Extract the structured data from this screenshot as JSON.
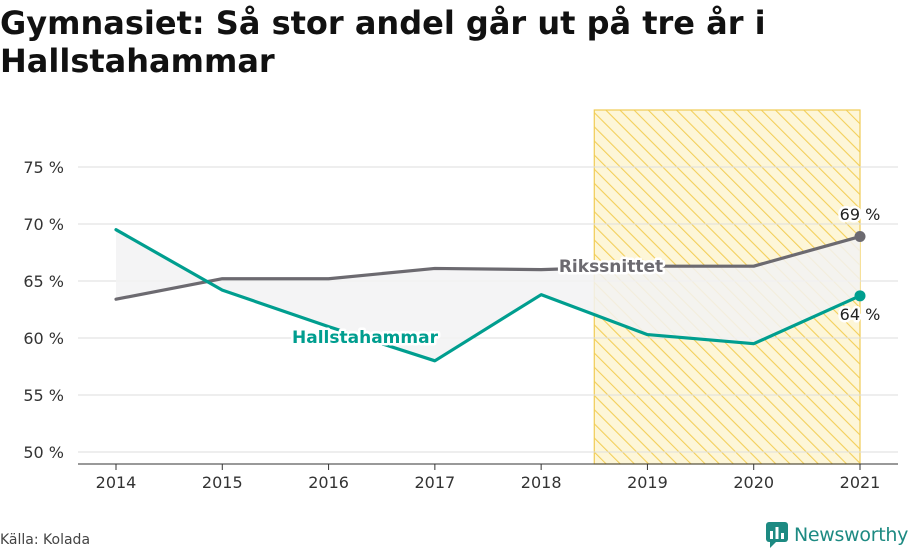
{
  "title": "Gymnasiet: Så stor andel går ut på tre år i Hallstahammar",
  "source": "Källa: Kolada",
  "logo": {
    "text": "Newsworthy",
    "icon": "newsworthy-logo-icon"
  },
  "colors": {
    "hallstahammar": "#009e8f",
    "riket": "#6c6a70",
    "highlight": "#f6d56b",
    "grid": "#dddddd"
  },
  "chart_data": {
    "type": "line",
    "title": "Gymnasiet: Så stor andel går ut på tre år i Hallstahammar",
    "x": [
      2014,
      2015,
      2016,
      2017,
      2018,
      2019,
      2020,
      2021
    ],
    "ylim": [
      50,
      80
    ],
    "yticks": [
      50,
      55,
      60,
      65,
      70,
      75
    ],
    "ytick_labels": [
      "50 %",
      "55 %",
      "60 %",
      "65 %",
      "70 %",
      "75 %"
    ],
    "grid": true,
    "highlight_range": [
      2018.5,
      2021
    ],
    "series": [
      {
        "name": "Hallstahammar",
        "values": [
          69.5,
          64.2,
          61.0,
          58.0,
          63.8,
          60.3,
          59.5,
          63.7
        ],
        "end_label": "64 %"
      },
      {
        "name": "Rikssnittet",
        "values": [
          63.4,
          65.2,
          65.2,
          66.1,
          66.0,
          66.3,
          66.3,
          68.9
        ],
        "end_label": "69 %"
      }
    ]
  }
}
